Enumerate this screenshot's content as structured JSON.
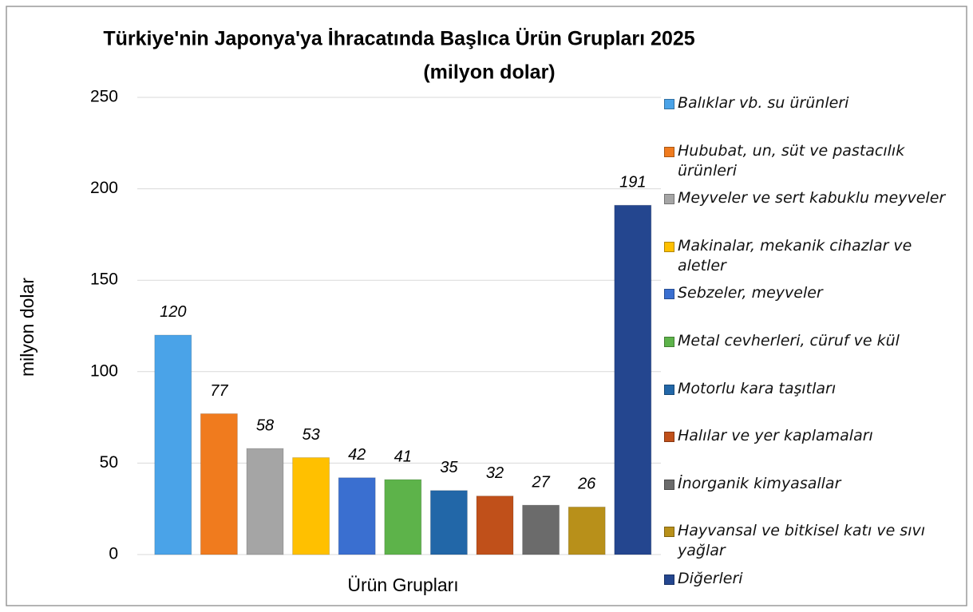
{
  "chart_data": {
    "type": "bar",
    "title": "Türkiye'nin Japonya'ya İhracatında Başlıca Ürün Grupları 2025",
    "subtitle": "(milyon dolar)",
    "x_label": "Ürün Grupları",
    "y_label": "milyon dolar",
    "categories": [
      "Balıklar vb. su ürünleri",
      "Hububat, un, süt ve pastacılık ürünleri",
      "Meyveler ve sert kabuklu meyveler",
      "Makinalar, mekanik cihazlar ve aletler",
      "Sebzeler, meyveler",
      "Metal cevherleri, cüruf ve kül",
      "Motorlu kara taşıtları",
      "Halılar ve yer kaplamaları",
      "İnorganik kimyasallar",
      "Hayvansal ve bitkisel katı ve sıvı yağlar",
      "Diğerleri"
    ],
    "values": [
      120,
      77,
      58,
      53,
      42,
      41,
      35,
      32,
      27,
      26,
      191
    ],
    "colors": [
      "#4aa3e8",
      "#f07b1e",
      "#a5a5a5",
      "#ffc000",
      "#3a6fd0",
      "#5db34a",
      "#2267a8",
      "#c0501a",
      "#6b6b6b",
      "#b8901a",
      "#24468f"
    ],
    "ylim": [
      0,
      250
    ],
    "yticks": [
      0,
      50,
      100,
      150,
      200,
      250
    ],
    "grid": true,
    "legend": "right"
  }
}
